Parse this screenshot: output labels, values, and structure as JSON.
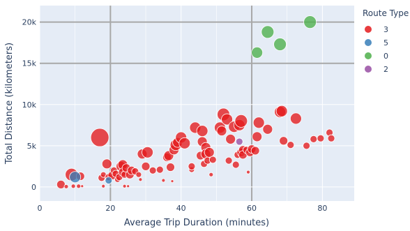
{
  "chart_data": {
    "type": "scatter",
    "xlabel": "Average Trip Duration (minutes)",
    "ylabel": "Total Distance (kilometers)",
    "xlim": [
      0,
      89
    ],
    "ylim": [
      -1700,
      22000
    ],
    "x_ticks": [
      0,
      20,
      40,
      60,
      80
    ],
    "y_ticks": [
      0,
      5000,
      10000,
      15000,
      20000
    ],
    "y_tick_labels": [
      "0",
      "5k",
      "10k",
      "15k",
      "20k"
    ],
    "grid": true,
    "highlighted_gridlines": {
      "x": [
        20,
        60
      ],
      "y": [
        20000,
        15000
      ]
    },
    "marker_size_legend": false,
    "legend": {
      "title": "Route Type",
      "placement": "right"
    },
    "plot_bg": "#e5ecf6",
    "series": [
      {
        "name": "3",
        "color": "#e41a1c",
        "points": [
          [
            6,
            300,
            6
          ],
          [
            7.5,
            50,
            3
          ],
          [
            9,
            1500,
            9
          ],
          [
            9.5,
            100,
            3
          ],
          [
            11,
            100,
            3
          ],
          [
            11.5,
            1300,
            6
          ],
          [
            12,
            100,
            2
          ],
          [
            17,
            6000,
            13
          ],
          [
            17.5,
            1100,
            5
          ],
          [
            18,
            1500,
            4
          ],
          [
            18,
            100,
            2.5
          ],
          [
            19,
            2800,
            7
          ],
          [
            19.5,
            1200,
            5
          ],
          [
            20.5,
            1400,
            6
          ],
          [
            21,
            2000,
            5
          ],
          [
            21.5,
            1600,
            5
          ],
          [
            22,
            900,
            4
          ],
          [
            22.5,
            1200,
            5
          ],
          [
            23,
            2500,
            7
          ],
          [
            23.5,
            2700,
            7
          ],
          [
            23.5,
            1800,
            6
          ],
          [
            24,
            1500,
            5
          ],
          [
            24,
            100,
            2.5
          ],
          [
            24.5,
            2300,
            6
          ],
          [
            25,
            100,
            2
          ],
          [
            25.5,
            1500,
            6
          ],
          [
            26,
            2000,
            6
          ],
          [
            27,
            1900,
            5
          ],
          [
            28,
            1500,
            4
          ],
          [
            28.5,
            900,
            2.5
          ],
          [
            29,
            4000,
            7
          ],
          [
            30,
            2500,
            6
          ],
          [
            30.5,
            4200,
            8
          ],
          [
            32,
            2000,
            5
          ],
          [
            34,
            2100,
            5
          ],
          [
            35,
            800,
            2.5
          ],
          [
            36,
            3600,
            6
          ],
          [
            36.5,
            3800,
            7
          ],
          [
            37,
            2400,
            6
          ],
          [
            37.5,
            700,
            2
          ],
          [
            38,
            4500,
            7
          ],
          [
            38.5,
            5100,
            8
          ],
          [
            39,
            5400,
            7
          ],
          [
            40,
            6000,
            8
          ],
          [
            41,
            5300,
            8
          ],
          [
            43,
            2100,
            4
          ],
          [
            43,
            2500,
            5
          ],
          [
            44,
            7200,
            8
          ],
          [
            45.5,
            3800,
            6
          ],
          [
            46,
            6800,
            8
          ],
          [
            46,
            5500,
            7
          ],
          [
            46.5,
            2800,
            5
          ],
          [
            47,
            4800,
            7
          ],
          [
            47,
            4000,
            7
          ],
          [
            47.5,
            3200,
            5
          ],
          [
            48,
            4200,
            7
          ],
          [
            48.5,
            1500,
            3
          ],
          [
            49,
            3300,
            5
          ],
          [
            51,
            7200,
            8
          ],
          [
            51.5,
            6800,
            7
          ],
          [
            52,
            8800,
            9
          ],
          [
            53,
            8200,
            8
          ],
          [
            53.5,
            3200,
            5
          ],
          [
            54,
            5800,
            7
          ],
          [
            55,
            7300,
            8
          ],
          [
            55.5,
            2700,
            5
          ],
          [
            56,
            3900,
            5
          ],
          [
            56.5,
            7500,
            8
          ],
          [
            57,
            8000,
            9
          ],
          [
            57,
            4200,
            6
          ],
          [
            57.5,
            4500,
            6
          ],
          [
            57.5,
            3900,
            6
          ],
          [
            58.5,
            4500,
            5
          ],
          [
            59,
            1800,
            2.5
          ],
          [
            59.5,
            4200,
            6
          ],
          [
            60,
            4600,
            6
          ],
          [
            61,
            4400,
            6
          ],
          [
            61.5,
            6100,
            7
          ],
          [
            62,
            7800,
            8
          ],
          [
            64.5,
            7000,
            7
          ],
          [
            68,
            9100,
            8
          ],
          [
            68.5,
            9200,
            8
          ],
          [
            69,
            5600,
            6
          ],
          [
            71,
            5100,
            5
          ],
          [
            72.5,
            8300,
            8
          ],
          [
            75.5,
            5000,
            5
          ],
          [
            77.5,
            5800,
            5
          ],
          [
            79.5,
            5900,
            5
          ],
          [
            82,
            6600,
            5
          ],
          [
            82.5,
            5900,
            5
          ]
        ]
      },
      {
        "name": "5",
        "color": "#377eb8",
        "points": [
          [
            10,
            1200,
            8
          ],
          [
            19.5,
            800,
            5
          ]
        ]
      },
      {
        "name": "0",
        "color": "#4daf4a",
        "points": [
          [
            61.5,
            16300,
            8
          ],
          [
            64.5,
            18800,
            9
          ],
          [
            68,
            17300,
            9
          ],
          [
            76.5,
            20000,
            9
          ]
        ]
      },
      {
        "name": "2",
        "color": "#984ea3",
        "points": [
          [
            56.5,
            5500,
            5
          ]
        ]
      }
    ]
  }
}
